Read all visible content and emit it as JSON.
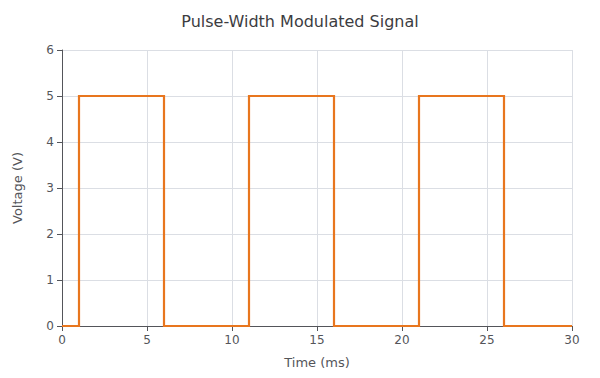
{
  "chart_data": {
    "type": "line",
    "title": "Pulse-Width Modulated Signal",
    "xlabel": "Time (ms)",
    "ylabel": "Voltage (V)",
    "x": [
      0,
      1,
      1,
      6,
      6,
      11,
      11,
      16,
      16,
      21,
      21,
      26,
      26,
      30
    ],
    "values": [
      0,
      0,
      5,
      5,
      0,
      0,
      5,
      5,
      0,
      0,
      5,
      5,
      0,
      0
    ],
    "color": "#E8761E",
    "xlim": [
      0,
      30
    ],
    "ylim": [
      0,
      6
    ],
    "xticks": [
      0,
      5,
      10,
      15,
      20,
      25,
      30
    ],
    "yticks": [
      0,
      1,
      2,
      3,
      4,
      5,
      6
    ],
    "grid": true
  }
}
